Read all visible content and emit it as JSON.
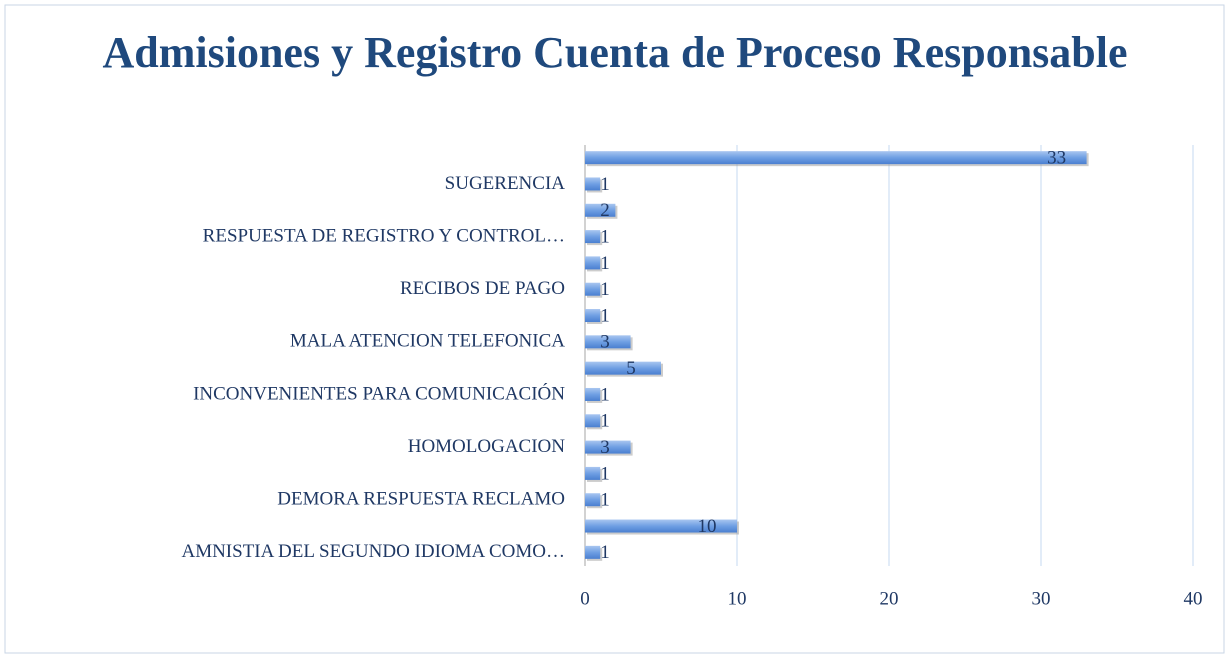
{
  "chart_data": {
    "type": "barh",
    "title": "Admisiones y Registro Cuenta de Proceso Responsable",
    "categories": [
      "AMNISTIA DEL SEGUNDO IDIOMA COMO…",
      null,
      "DEMORA RESPUESTA RECLAMO",
      null,
      "HOMOLOGACION",
      null,
      "INCONVENIENTES PARA COMUNICACIÓN",
      null,
      "MALA ATENCION TELEFONICA",
      null,
      "RECIBOS DE PAGO",
      null,
      "RESPUESTA DE REGISTRO Y CONTROL…",
      null,
      "SUGERENCIA",
      null
    ],
    "values": [
      1,
      10,
      1,
      1,
      3,
      1,
      1,
      5,
      3,
      1,
      1,
      1,
      1,
      2,
      1,
      33
    ],
    "color": "#6f9fe3",
    "xlim": [
      0,
      40
    ],
    "xticks": [
      0,
      10,
      20,
      30,
      40
    ],
    "grid": true
  }
}
